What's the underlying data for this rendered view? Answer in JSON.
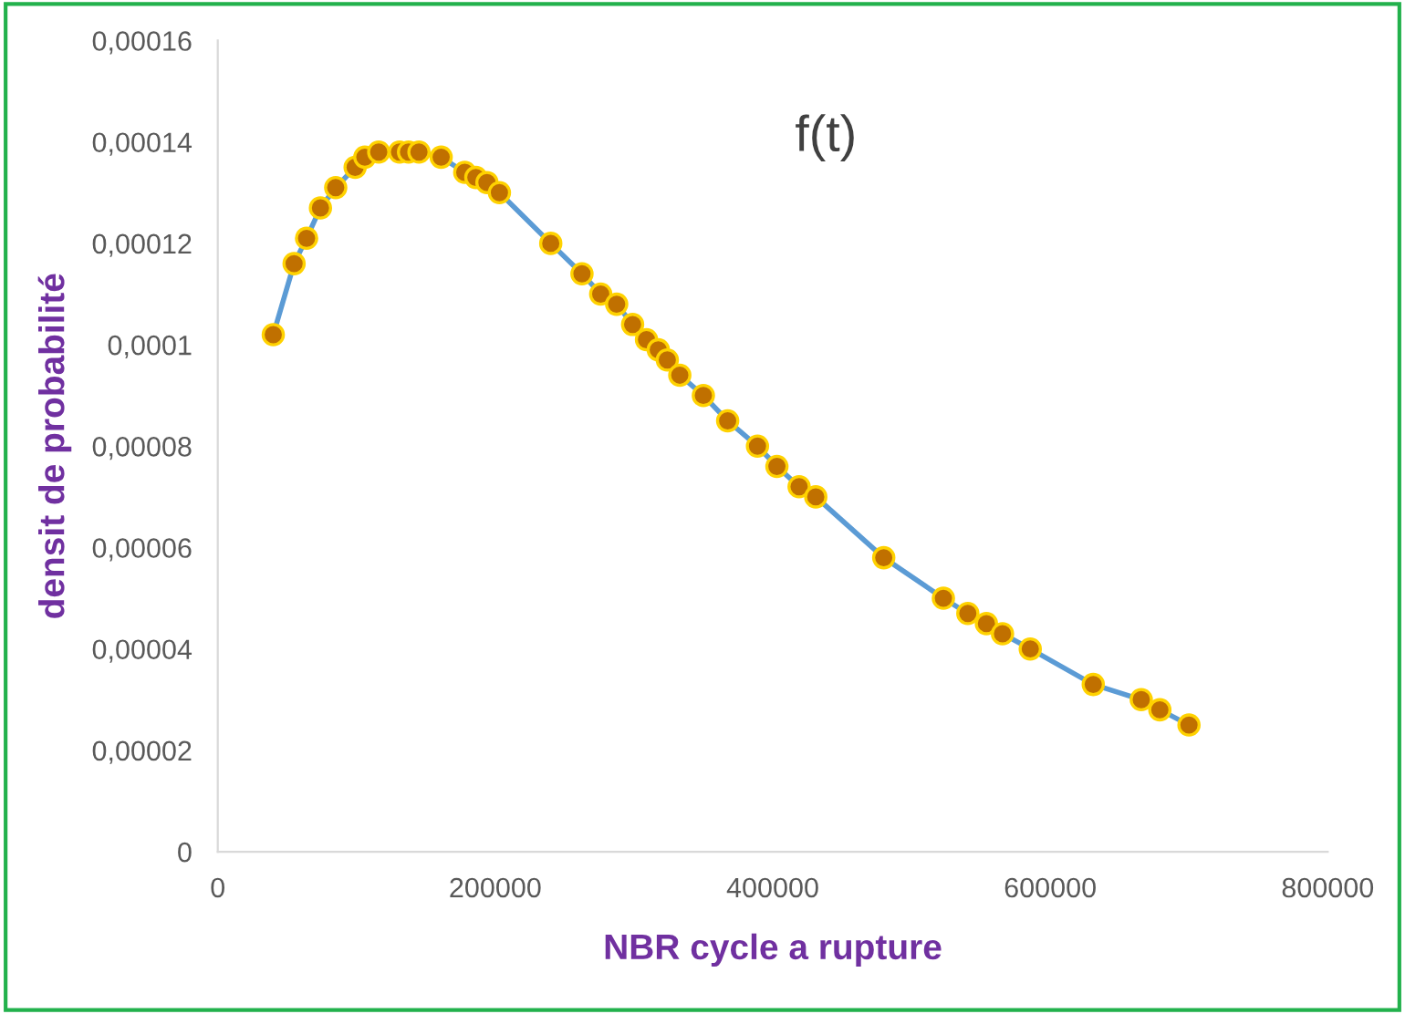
{
  "chart_data": {
    "type": "line",
    "title": "f(t)",
    "xlabel": "NBR cycle a rupture",
    "ylabel": "densit de probabilité",
    "marker": "circle",
    "grid": false,
    "legend": false,
    "xlim": [
      0,
      800000
    ],
    "xticks": [
      0,
      200000,
      400000,
      600000,
      800000
    ],
    "ylim": [
      0,
      0.00016
    ],
    "yticks": [
      {
        "value": 0,
        "label": "0"
      },
      {
        "value": 2e-05,
        "label": "0,00002"
      },
      {
        "value": 4e-05,
        "label": "0,00004"
      },
      {
        "value": 6e-05,
        "label": "0,00006"
      },
      {
        "value": 8e-05,
        "label": "0,00008"
      },
      {
        "value": 0.0001,
        "label": "0,0001"
      },
      {
        "value": 0.00012,
        "label": "0,00012"
      },
      {
        "value": 0.00014,
        "label": "0,00014"
      },
      {
        "value": 0.00016,
        "label": "0,00016"
      }
    ],
    "series": [
      {
        "color": "#5b9bd5",
        "x": [
          40000,
          55000,
          64000,
          74000,
          85000,
          99000,
          106000,
          116000,
          131000,
          137500,
          145000,
          161000,
          178000,
          186000,
          194000,
          203000,
          240000,
          262500,
          276000,
          287500,
          299000,
          309000,
          317500,
          324000,
          333000,
          350000,
          367500,
          389000,
          403000,
          419000,
          431000,
          480000,
          523000,
          540600,
          554000,
          565600,
          585600,
          631000,
          665600,
          679000,
          700000
        ],
        "values": [
          0.000102,
          0.000116,
          0.000121,
          0.000127,
          0.000131,
          0.000135,
          0.000137,
          0.000138,
          0.000138,
          0.000138,
          0.000138,
          0.000137,
          0.000134,
          0.000133,
          0.000132,
          0.00013,
          0.00012,
          0.000114,
          0.00011,
          0.000108,
          0.000104,
          0.000101,
          9.9e-05,
          9.7e-05,
          9.4e-05,
          9e-05,
          8.5e-05,
          8e-05,
          7.6e-05,
          7.2e-05,
          7e-05,
          5.8e-05,
          5e-05,
          4.7e-05,
          4.5e-05,
          4.3e-05,
          4e-05,
          3.3e-05,
          3e-05,
          2.8e-05,
          2.5e-05
        ]
      }
    ]
  }
}
